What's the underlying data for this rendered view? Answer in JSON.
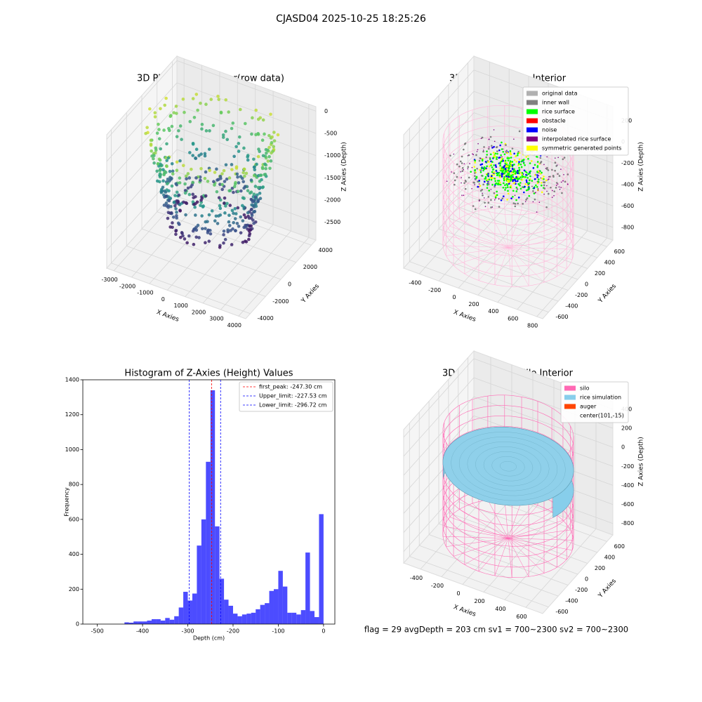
{
  "title": "CJASD04 2025-10-25 18:25:26",
  "footer": "flag = 29  avgDepth = 203 cm  sv1 = 700~2300  sv2 = 700~2300",
  "chart_data": [
    {
      "type": "scatter3d",
      "title": "3D Plot of Silo Interior(row data)",
      "xlabel": "X Axies",
      "ylabel": "Y Axies",
      "zlabel": "Z Axies (Depth)",
      "xlim": [
        -3400,
        4400
      ],
      "xticks": [
        -3000,
        -2000,
        -1000,
        0,
        1000,
        2000,
        3000,
        4000
      ],
      "ylim": [
        -4600,
        4600
      ],
      "yticks": [
        -4000,
        -2000,
        0,
        2000,
        4000
      ],
      "zlim": [
        -2900,
        100
      ],
      "zticks": [
        0,
        -500,
        -1000,
        -1500,
        -2000,
        -2500
      ]
    },
    {
      "type": "scatter3d",
      "title": "3D classify of Silo Interior",
      "xlabel": "X Axies",
      "ylabel": "Y Axies",
      "zlabel": "Z Axies (Depth)",
      "xlim": [
        -560,
        860
      ],
      "xticks": [
        -400,
        -200,
        0,
        200,
        400,
        600,
        800
      ],
      "ylim": [
        -720,
        720
      ],
      "yticks": [
        -600,
        -400,
        -200,
        0,
        200,
        400,
        600
      ],
      "zlim": [
        -920,
        330
      ],
      "zticks": [
        -800,
        -600,
        -400,
        -200,
        0,
        200
      ],
      "legend": [
        {
          "name": "original data",
          "color": "#b0b0b0"
        },
        {
          "name": "inner wall",
          "color": "#808080"
        },
        {
          "name": "rice surface",
          "color": "#00ff00"
        },
        {
          "name": "obstacle",
          "color": "#ff0000"
        },
        {
          "name": "noise",
          "color": "#0000ff"
        },
        {
          "name": "interpolated rice surface",
          "color": "#800080"
        },
        {
          "name": "symmetric generated points",
          "color": "#ffff00"
        }
      ]
    },
    {
      "type": "histogram",
      "title": "Histogram of Z-Axies (Height) Values",
      "xlabel": "Depth (cm)",
      "ylabel": "Frequency",
      "color": "#0000ff",
      "bins": [
        -440,
        -430,
        -420,
        -410,
        -400,
        -390,
        -380,
        -370,
        -360,
        -350,
        -340,
        -330,
        -320,
        -310,
        -300,
        -290,
        -280,
        -270,
        -260,
        -250,
        -240,
        -230,
        -220,
        -210,
        -200,
        -190,
        -180,
        -170,
        -160,
        -150,
        -140,
        -130,
        -120,
        -110,
        -100,
        -90,
        -80,
        -70,
        -60,
        -50,
        -40,
        -30,
        -20,
        -10,
        0
      ],
      "values": [
        10,
        8,
        15,
        15,
        15,
        20,
        28,
        28,
        20,
        35,
        25,
        45,
        95,
        185,
        135,
        175,
        450,
        600,
        930,
        1340,
        560,
        260,
        140,
        105,
        60,
        45,
        55,
        60,
        65,
        85,
        110,
        120,
        190,
        200,
        305,
        215,
        65,
        65,
        55,
        80,
        410,
        75,
        40,
        630
      ],
      "xlim": [
        -532,
        25
      ],
      "xticks": [
        -500,
        -400,
        -300,
        -200,
        -100,
        0
      ],
      "ylim": [
        0,
        1400
      ],
      "yticks": [
        0,
        200,
        400,
        600,
        800,
        1000,
        1200,
        1400
      ],
      "lines": [
        {
          "name": "first_peak: -247.30 cm",
          "value": -247.3,
          "color": "#ff0000"
        },
        {
          "name": "Upper_limit: -227.53 cm",
          "value": -227.53,
          "color": "#0000ff"
        },
        {
          "name": "Lower_limit: -296.72 cm",
          "value": -296.72,
          "color": "#0000ff"
        }
      ]
    },
    {
      "type": "scatter3d",
      "title": "3D simulation of Silo Interior",
      "xlabel": "X Axies",
      "ylabel": "Y Axies",
      "zlabel": "Z Axies (Depth)",
      "xlim": [
        -560,
        760
      ],
      "xticks": [
        -400,
        -200,
        0,
        200,
        400,
        600
      ],
      "ylim": [
        -720,
        720
      ],
      "yticks": [
        -600,
        -400,
        -200,
        0,
        200,
        400,
        600
      ],
      "zlim": [
        -920,
        480
      ],
      "zticks": [
        -800,
        -600,
        -400,
        -200,
        0,
        200,
        400
      ],
      "legend": [
        {
          "name": "silo",
          "color": "#ff69b4"
        },
        {
          "name": "rice simulation",
          "color": "#87ceeb"
        },
        {
          "name": "auger",
          "color": "#ff4500"
        },
        {
          "name": "center(101,-15)"
        }
      ]
    }
  ]
}
